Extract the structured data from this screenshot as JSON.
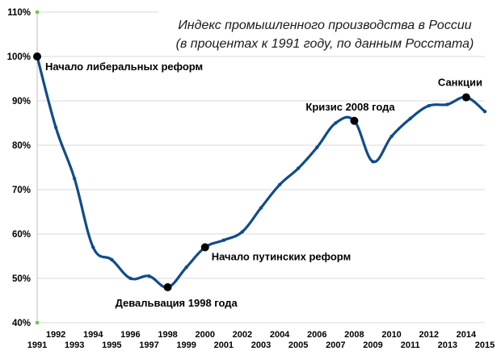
{
  "chart_data": {
    "type": "line",
    "title_lines": [
      "Индекс промышленного производства в России",
      "(в процентах к 1991 году, по данным Росстата)"
    ],
    "xlabel": "",
    "ylabel": "",
    "ylim": [
      40,
      110
    ],
    "y_ticks": [
      "40%",
      "50%",
      "60%",
      "70%",
      "80%",
      "90%",
      "100%",
      "110%"
    ],
    "x_ticks_upper": [
      "1992",
      "1994",
      "1996",
      "1998",
      "2000",
      "2002",
      "2004",
      "2006",
      "2008",
      "2010",
      "2012",
      "2014"
    ],
    "x_ticks_lower": [
      "1991",
      "1993",
      "1995",
      "1997",
      "1999",
      "2001",
      "2003",
      "2005",
      "2007",
      "2009",
      "2011",
      "2013",
      "2015"
    ],
    "x": [
      1991,
      1992,
      1993,
      1994,
      1995,
      1996,
      1997,
      1998,
      1999,
      2000,
      2001,
      2002,
      2003,
      2004,
      2005,
      2006,
      2007,
      2008,
      2009,
      2010,
      2011,
      2012,
      2013,
      2014,
      2015
    ],
    "series": [
      {
        "values": [
          100,
          84,
          72.5,
          57,
          54.2,
          50,
          50.5,
          48,
          52.5,
          57,
          58.6,
          60.5,
          65.9,
          71.1,
          74.8,
          79.5,
          85,
          85.5,
          76.3,
          82,
          86,
          88.9,
          89.2,
          90.8,
          87.6
        ],
        "color": "#0f4c8a"
      }
    ],
    "annotations": [
      {
        "x": 1991,
        "y": 100,
        "label": "Начало либеральных реформ"
      },
      {
        "x": 1998,
        "y": 48,
        "label": "Девальвация 1998 года"
      },
      {
        "x": 2000,
        "y": 57,
        "label": "Начало путинских реформ"
      },
      {
        "x": 2008,
        "y": 85.5,
        "label": "Кризис 2008 года"
      },
      {
        "x": 2014,
        "y": 90.8,
        "label": "Санкции"
      }
    ],
    "grid": true,
    "legend": "none"
  }
}
